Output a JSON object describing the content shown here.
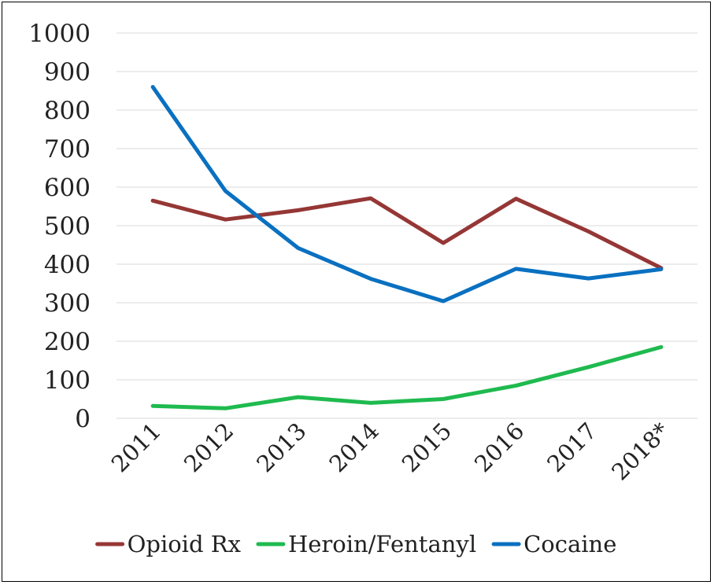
{
  "chart_data": {
    "type": "line",
    "title": "",
    "xlabel": "",
    "ylabel": "",
    "categories": [
      "2011",
      "2012",
      "2013",
      "2014",
      "2015",
      "2016",
      "2017",
      "2018*"
    ],
    "ylim": [
      0,
      1000
    ],
    "yticks": [
      0,
      100,
      200,
      300,
      400,
      500,
      600,
      700,
      800,
      900,
      1000
    ],
    "grid": true,
    "legend_position": "bottom",
    "series": [
      {
        "name": "Opioid Rx",
        "color": "#953735",
        "values": [
          565,
          516,
          540,
          571,
          455,
          570,
          485,
          390
        ]
      },
      {
        "name": "Heroin/Fentanyl",
        "color": "#1fba4f",
        "values": [
          32,
          26,
          55,
          40,
          50,
          85,
          133,
          185
        ]
      },
      {
        "name": "Cocaine",
        "color": "#0a70c0",
        "values": [
          860,
          590,
          442,
          362,
          304,
          388,
          363,
          387
        ]
      }
    ]
  }
}
